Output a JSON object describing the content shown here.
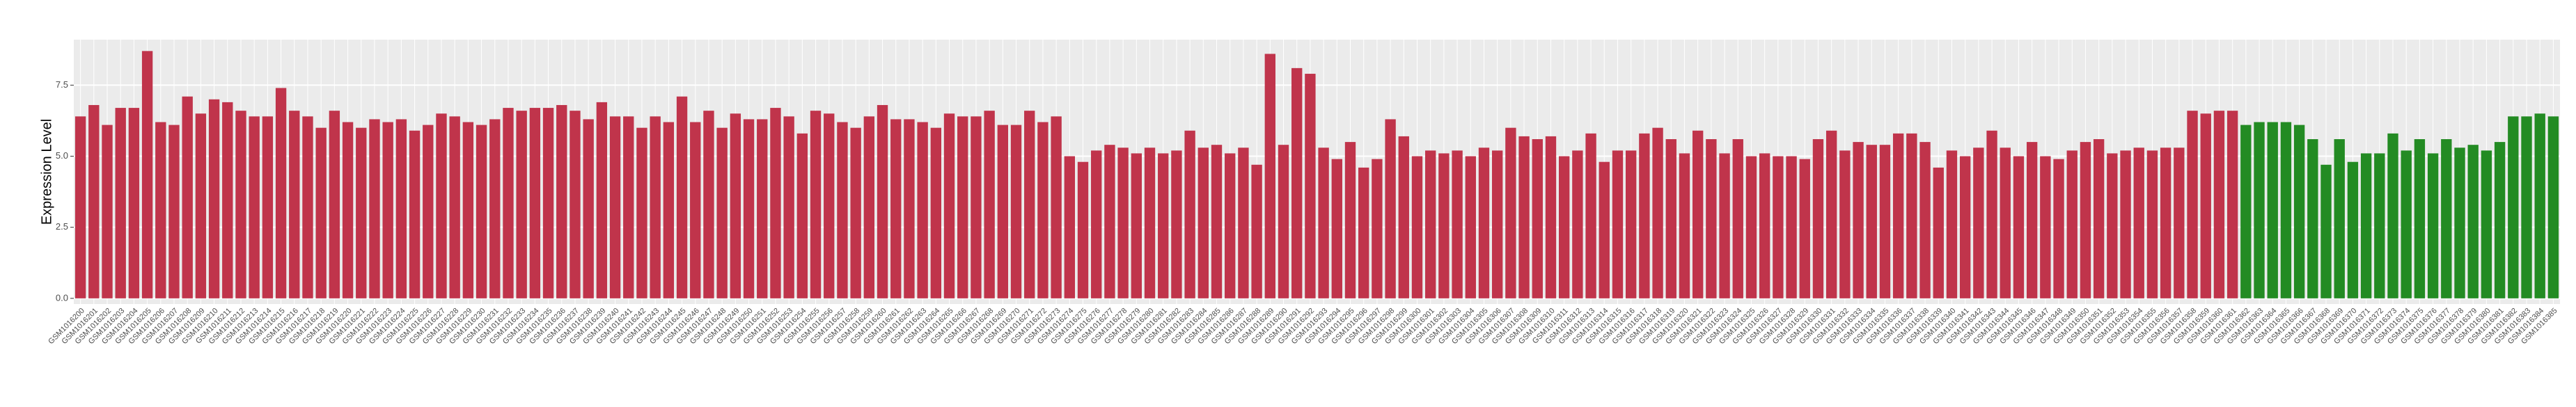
{
  "chart_data": {
    "type": "bar",
    "y_label": "Expression Level",
    "ylim": [
      -0.2,
      9.1
    ],
    "yticks": [
      {
        "value": 0,
        "label": "0.0"
      },
      2.5,
      {
        "value": 5,
        "label": "5.0"
      },
      7.5
    ],
    "grid": true,
    "categories": [
      "GSM1016200",
      "GSM1016201",
      "GSM1016202",
      "GSM1016203",
      "GSM1016204",
      "GSM1016205",
      "GSM1016206",
      "GSM1016207",
      "GSM1016208",
      "GSM1016209",
      "GSM1016210",
      "GSM1016211",
      "GSM1016212",
      "GSM1016213",
      "GSM1016214",
      "GSM1016215",
      "GSM1016216",
      "GSM1016217",
      "GSM1016218",
      "GSM1016219",
      "GSM1016220",
      "GSM1016221",
      "GSM1016222",
      "GSM1016223",
      "GSM1016224",
      "GSM1016225",
      "GSM1016226",
      "GSM1016227",
      "GSM1016228",
      "GSM1016229",
      "GSM1016230",
      "GSM1016231",
      "GSM1016232",
      "GSM1016233",
      "GSM1016234",
      "GSM1016235",
      "GSM1016236",
      "GSM1016237",
      "GSM1016238",
      "GSM1016239",
      "GSM1016240",
      "GSM1016241",
      "GSM1016242",
      "GSM1016243",
      "GSM1016244",
      "GSM1016245",
      "GSM1016246",
      "GSM1016247",
      "GSM1016248",
      "GSM1016249",
      "GSM1016250",
      "GSM1016251",
      "GSM1016252",
      "GSM1016253",
      "GSM1016254",
      "GSM1016255",
      "GSM1016256",
      "GSM1016257",
      "GSM1016258",
      "GSM1016259",
      "GSM1016260",
      "GSM1016261",
      "GSM1016262",
      "GSM1016263",
      "GSM1016264",
      "GSM1016265",
      "GSM1016266",
      "GSM1016267",
      "GSM1016268",
      "GSM1016269",
      "GSM1016270",
      "GSM1016271",
      "GSM1016272",
      "GSM1016273",
      "GSM1016274",
      "GSM1016275",
      "GSM1016276",
      "GSM1016277",
      "GSM1016278",
      "GSM1016279",
      "GSM1016280",
      "GSM1016281",
      "GSM1016282",
      "GSM1016283",
      "GSM1016284",
      "GSM1016285",
      "GSM1016286",
      "GSM1016287",
      "GSM1016288",
      "GSM1016289",
      "GSM1016290",
      "GSM1016291",
      "GSM1016292",
      "GSM1016293",
      "GSM1016294",
      "GSM1016295",
      "GSM1016296",
      "GSM1016297",
      "GSM1016298",
      "GSM1016299",
      "GSM1016300",
      "GSM1016301",
      "GSM1016302",
      "GSM1016303",
      "GSM1016304",
      "GSM1016305",
      "GSM1016306",
      "GSM1016307",
      "GSM1016308",
      "GSM1016309",
      "GSM1016310",
      "GSM1016311",
      "GSM1016312",
      "GSM1016313",
      "GSM1016314",
      "GSM1016315",
      "GSM1016316",
      "GSM1016317",
      "GSM1016318",
      "GSM1016319",
      "GSM1016320",
      "GSM1016321",
      "GSM1016322",
      "GSM1016323",
      "GSM1016324",
      "GSM1016325",
      "GSM1016326",
      "GSM1016327",
      "GSM1016328",
      "GSM1016329",
      "GSM1016330",
      "GSM1016331",
      "GSM1016332",
      "GSM1016333",
      "GSM1016334",
      "GSM1016335",
      "GSM1016336",
      "GSM1016337",
      "GSM1016338",
      "GSM1016339",
      "GSM1016340",
      "GSM1016341",
      "GSM1016342",
      "GSM1016343",
      "GSM1016344",
      "GSM1016345",
      "GSM1016346",
      "GSM1016347",
      "GSM1016348",
      "GSM1016349",
      "GSM1016350",
      "GSM1016351",
      "GSM1016352",
      "GSM1016353",
      "GSM1016354",
      "GSM1016355",
      "GSM1016356",
      "GSM1016357",
      "GSM1016358",
      "GSM1016359",
      "GSM1016360",
      "GSM1016361",
      "GSM1016362",
      "GSM1016363",
      "GSM1016364",
      "GSM1016365",
      "GSM1016366",
      "GSM1016367",
      "GSM1016368",
      "GSM1016369",
      "GSM1016370",
      "GSM1016371",
      "GSM1016372",
      "GSM1016373",
      "GSM1016374",
      "GSM1016375",
      "GSM1016376",
      "GSM1016377",
      "GSM1016378",
      "GSM1016379",
      "GSM1016380",
      "GSM1016381",
      "GSM1016382",
      "GSM1016383",
      "GSM1016384",
      "GSM1016385"
    ],
    "values": [
      6.4,
      6.8,
      6.1,
      6.7,
      6.7,
      8.7,
      6.2,
      6.1,
      7.1,
      6.5,
      7.0,
      6.9,
      6.6,
      6.4,
      6.4,
      7.4,
      6.6,
      6.4,
      6.0,
      6.6,
      6.2,
      6.0,
      6.3,
      6.2,
      6.3,
      5.9,
      6.1,
      6.5,
      6.4,
      6.2,
      6.1,
      6.3,
      6.7,
      6.6,
      6.7,
      6.7,
      6.8,
      6.6,
      6.3,
      6.9,
      6.4,
      6.4,
      6.0,
      6.4,
      6.2,
      7.1,
      6.2,
      6.6,
      6.0,
      6.5,
      6.3,
      6.3,
      6.7,
      6.4,
      5.8,
      6.6,
      6.5,
      6.2,
      6.0,
      6.4,
      6.8,
      6.3,
      6.3,
      6.2,
      6.0,
      6.5,
      6.4,
      6.4,
      6.6,
      6.1,
      6.1,
      6.6,
      6.2,
      6.4,
      5.0,
      4.8,
      5.2,
      5.4,
      5.3,
      5.1,
      5.3,
      5.1,
      5.2,
      5.9,
      5.3,
      5.4,
      5.1,
      5.3,
      4.7,
      8.6,
      5.4,
      8.1,
      7.9,
      5.3,
      4.9,
      5.5,
      4.6,
      4.9,
      6.3,
      5.7,
      5.0,
      5.2,
      5.1,
      5.2,
      5.0,
      5.3,
      5.2,
      6.0,
      5.7,
      5.6,
      5.7,
      5.0,
      5.2,
      5.8,
      4.8,
      5.2,
      5.2,
      5.8,
      6.0,
      5.6,
      5.1,
      5.9,
      5.6,
      5.1,
      5.6,
      5.0,
      5.1,
      5.0,
      5.0,
      4.9,
      5.6,
      5.9,
      5.2,
      5.5,
      5.4,
      5.4,
      5.8,
      5.8,
      5.5,
      4.6,
      5.2,
      5.0,
      5.3,
      5.9,
      5.3,
      5.0,
      5.5,
      5.0,
      4.9,
      5.2,
      5.5,
      5.6,
      5.1,
      5.2,
      5.3,
      5.2,
      5.3,
      5.3,
      6.6,
      6.5,
      6.6,
      6.6,
      6.1,
      6.2,
      6.2,
      6.2,
      6.1,
      5.6,
      4.7,
      5.6,
      4.8,
      5.1,
      5.1,
      5.8,
      5.2,
      5.6,
      5.1,
      5.6,
      5.3,
      5.4,
      5.2,
      5.5,
      6.4,
      6.4,
      6.5,
      6.4
    ],
    "colors": [
      "#c0344b",
      "#c0344b",
      "#c0344b",
      "#c0344b",
      "#c0344b",
      "#c0344b",
      "#c0344b",
      "#c0344b",
      "#c0344b",
      "#c0344b",
      "#c0344b",
      "#c0344b",
      "#c0344b",
      "#c0344b",
      "#c0344b",
      "#c0344b",
      "#c0344b",
      "#c0344b",
      "#c0344b",
      "#c0344b",
      "#c0344b",
      "#c0344b",
      "#c0344b",
      "#c0344b",
      "#c0344b",
      "#c0344b",
      "#c0344b",
      "#c0344b",
      "#c0344b",
      "#c0344b",
      "#c0344b",
      "#c0344b",
      "#c0344b",
      "#c0344b",
      "#c0344b",
      "#c0344b",
      "#c0344b",
      "#c0344b",
      "#c0344b",
      "#c0344b",
      "#c0344b",
      "#c0344b",
      "#c0344b",
      "#c0344b",
      "#c0344b",
      "#c0344b",
      "#c0344b",
      "#c0344b",
      "#c0344b",
      "#c0344b",
      "#c0344b",
      "#c0344b",
      "#c0344b",
      "#c0344b",
      "#c0344b",
      "#c0344b",
      "#c0344b",
      "#c0344b",
      "#c0344b",
      "#c0344b",
      "#c0344b",
      "#c0344b",
      "#c0344b",
      "#c0344b",
      "#c0344b",
      "#c0344b",
      "#c0344b",
      "#c0344b",
      "#c0344b",
      "#c0344b",
      "#c0344b",
      "#c0344b",
      "#c0344b",
      "#c0344b",
      "#c0344b",
      "#c0344b",
      "#c0344b",
      "#c0344b",
      "#c0344b",
      "#c0344b",
      "#c0344b",
      "#c0344b",
      "#c0344b",
      "#c0344b",
      "#c0344b",
      "#c0344b",
      "#c0344b",
      "#c0344b",
      "#c0344b",
      "#c0344b",
      "#c0344b",
      "#c0344b",
      "#c0344b",
      "#c0344b",
      "#c0344b",
      "#c0344b",
      "#c0344b",
      "#c0344b",
      "#c0344b",
      "#c0344b",
      "#c0344b",
      "#c0344b",
      "#c0344b",
      "#c0344b",
      "#c0344b",
      "#c0344b",
      "#c0344b",
      "#c0344b",
      "#c0344b",
      "#c0344b",
      "#c0344b",
      "#c0344b",
      "#c0344b",
      "#c0344b",
      "#c0344b",
      "#c0344b",
      "#c0344b",
      "#c0344b",
      "#c0344b",
      "#c0344b",
      "#c0344b",
      "#c0344b",
      "#c0344b",
      "#c0344b",
      "#c0344b",
      "#c0344b",
      "#c0344b",
      "#c0344b",
      "#c0344b",
      "#c0344b",
      "#c0344b",
      "#c0344b",
      "#c0344b",
      "#c0344b",
      "#c0344b",
      "#c0344b",
      "#c0344b",
      "#c0344b",
      "#c0344b",
      "#c0344b",
      "#c0344b",
      "#c0344b",
      "#c0344b",
      "#c0344b",
      "#c0344b",
      "#c0344b",
      "#c0344b",
      "#c0344b",
      "#c0344b",
      "#c0344b",
      "#c0344b",
      "#c0344b",
      "#c0344b",
      "#c0344b",
      "#c0344b",
      "#c0344b",
      "#c0344b",
      "#c0344b",
      "#c0344b",
      "#c0344b",
      "#c0344b",
      "#c0344b",
      "#238b23",
      "#238b23",
      "#238b23",
      "#238b23",
      "#238b23",
      "#238b23",
      "#238b23",
      "#238b23",
      "#238b23",
      "#238b23",
      "#238b23",
      "#238b23",
      "#238b23",
      "#238b23",
      "#238b23",
      "#238b23",
      "#238b23",
      "#238b23",
      "#238b23",
      "#238b23",
      "#238b23",
      "#238b23",
      "#238b23",
      "#238b23"
    ]
  }
}
